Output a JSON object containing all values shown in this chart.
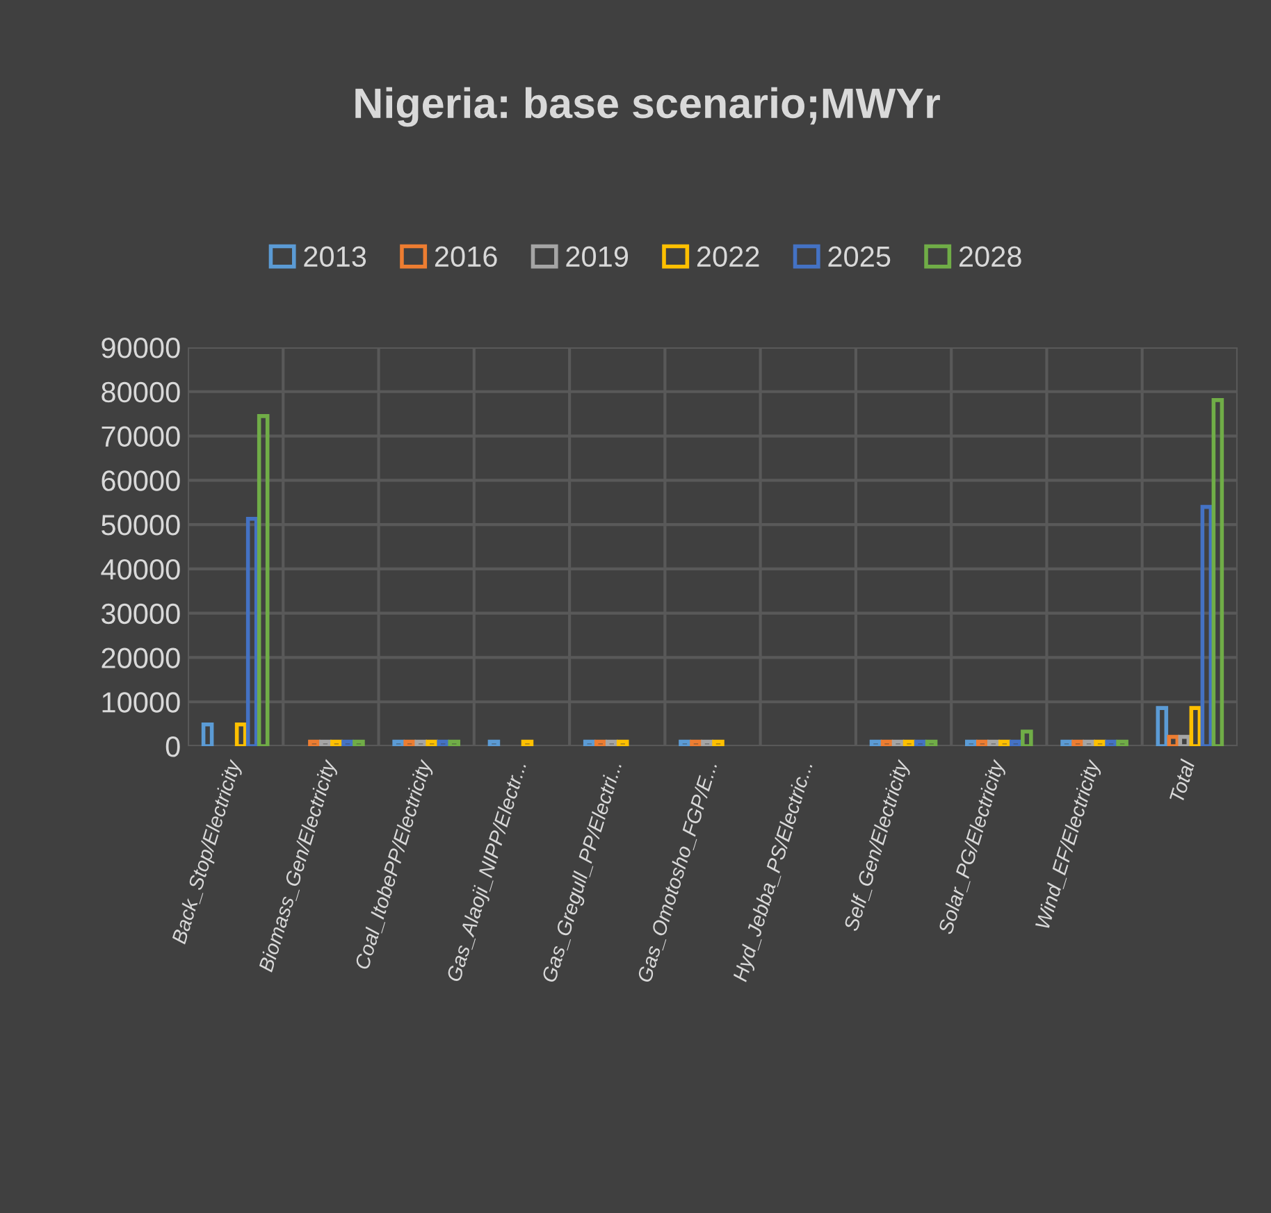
{
  "chart_data": {
    "type": "bar",
    "title": "Nigeria: base scenario;MWYr",
    "categories": [
      "Back_Stop/Electricity",
      "Biomass_Gen/Electricity",
      "Coal_ItobePP/Electricity",
      "Gas_Alaoji_NIPP/Electr...",
      "Gas_Gregull_PP/Electri...",
      "Gas_Omotosho_FGP/E...",
      "Hyd_Jebba_PS/Electric...",
      "Self_Gen/Electricity",
      "Solar_PG/Electricity",
      "Wind_EF/Electricity",
      "Total"
    ],
    "series": [
      {
        "name": "2013",
        "color": "#5b9bd5",
        "values": [
          4900,
          null,
          1000,
          1000,
          1000,
          1000,
          null,
          1000,
          1000,
          1000,
          8600
        ]
      },
      {
        "name": "2016",
        "color": "#ed7d31",
        "values": [
          null,
          1000,
          1000,
          null,
          1000,
          1000,
          null,
          1000,
          1000,
          1000,
          2100
        ]
      },
      {
        "name": "2019",
        "color": "#a5a5a5",
        "values": [
          null,
          1000,
          1000,
          null,
          1000,
          1000,
          null,
          1000,
          1000,
          1000,
          2100
        ]
      },
      {
        "name": "2022",
        "color": "#ffc000",
        "values": [
          4900,
          1000,
          1000,
          1000,
          1000,
          1000,
          null,
          1000,
          1000,
          1000,
          8600
        ]
      },
      {
        "name": "2025",
        "color": "#4472c4",
        "values": [
          51300,
          1000,
          1000,
          null,
          null,
          null,
          null,
          1000,
          1000,
          1000,
          54000
        ]
      },
      {
        "name": "2028",
        "color": "#70ad47",
        "values": [
          74500,
          1000,
          1000,
          null,
          null,
          null,
          null,
          1000,
          3300,
          1000,
          78100
        ]
      }
    ],
    "ylim": [
      0,
      90000
    ],
    "yticks": [
      0,
      10000,
      20000,
      30000,
      40000,
      50000,
      60000,
      70000,
      80000,
      90000
    ],
    "grid": true,
    "legend": "top"
  }
}
